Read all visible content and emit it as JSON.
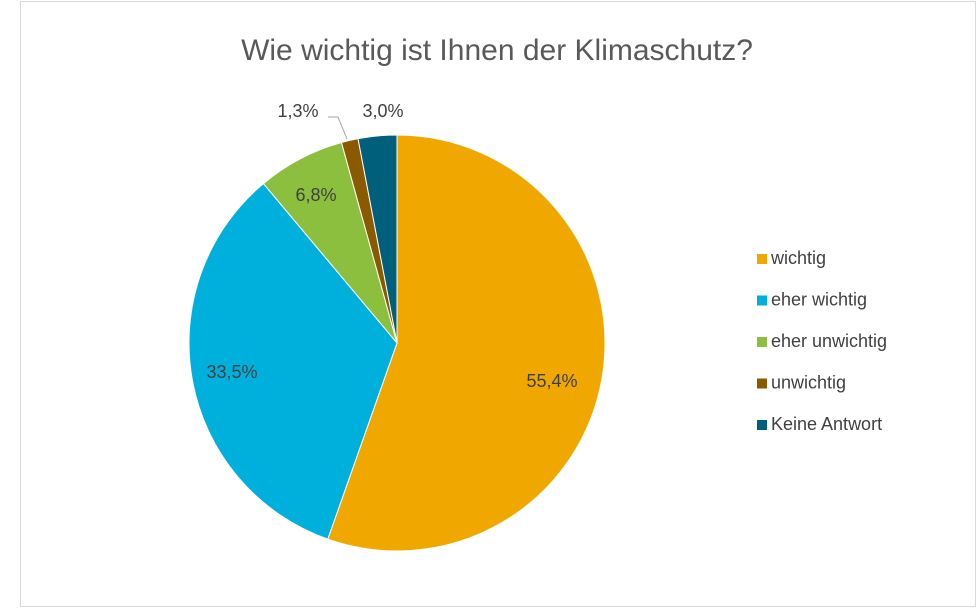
{
  "chart_data": {
    "type": "pie",
    "title": "Wie wichtig ist Ihnen der Klimaschutz?",
    "categories": [
      "wichtig",
      "eher wichtig",
      "eher unwichtig",
      "unwichtig",
      "Keine Antwort"
    ],
    "values": [
      55.4,
      33.5,
      6.8,
      1.3,
      3.0
    ],
    "value_labels": [
      "55,4%",
      "33,5%",
      "6,8%",
      "1,3%",
      "3,0%"
    ],
    "colors": [
      "#f0a800",
      "#00b0dc",
      "#8dbf3f",
      "#8b5a00",
      "#005f7a"
    ],
    "legend": "right"
  }
}
